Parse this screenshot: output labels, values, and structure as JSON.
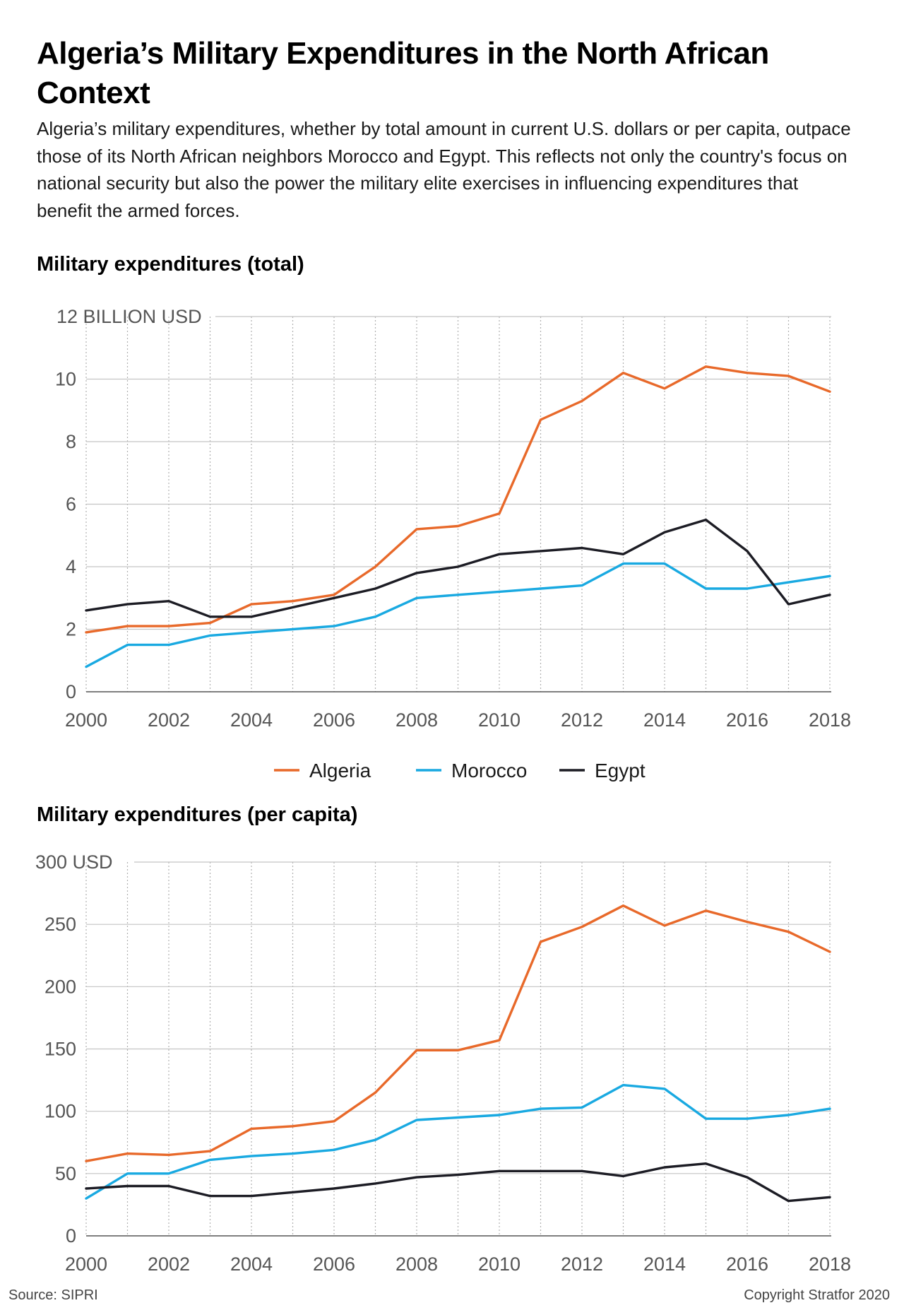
{
  "title": "Algeria’s Military Expenditures in the North African Context",
  "subtitle": "Algeria’s military expenditures, whether by total amount in current U.S. dollars or per capita, outpace those of its North African neighbors Morocco and Egypt. This reflects not only the country's focus on national security but also the power the military elite exercises in influencing expenditures that benefit the armed forces.",
  "source": "Source: SIPRI",
  "copyright": "Copyright Stratfor 2020",
  "colors": {
    "Algeria": "#e8692a",
    "Morocco": "#19a9e1",
    "Egypt": "#1c1c24"
  },
  "chart_data": [
    {
      "type": "line",
      "title": "Military expenditures (total)",
      "unit_label": "12 BILLION USD",
      "ylim": [
        0,
        12
      ],
      "yticks": [
        0,
        2,
        4,
        6,
        8,
        10,
        12
      ],
      "ytick_labels": [
        "0",
        "2",
        "4",
        "6",
        "8",
        "10",
        "12 BILLION USD"
      ],
      "xticks": [
        2000,
        2002,
        2004,
        2006,
        2008,
        2010,
        2012,
        2014,
        2016,
        2018
      ],
      "x": [
        2000,
        2001,
        2002,
        2003,
        2004,
        2005,
        2006,
        2007,
        2008,
        2009,
        2010,
        2011,
        2012,
        2013,
        2014,
        2015,
        2016,
        2017,
        2018
      ],
      "grid": true,
      "legend": "bottom-center",
      "legend_labels": [
        "Algeria",
        "Morocco",
        "Egypt"
      ],
      "series": [
        {
          "name": "Algeria",
          "values": [
            1.9,
            2.1,
            2.1,
            2.2,
            2.8,
            2.9,
            3.1,
            4.0,
            5.2,
            5.3,
            5.7,
            8.7,
            9.3,
            10.2,
            9.7,
            10.4,
            10.2,
            10.1,
            9.6
          ]
        },
        {
          "name": "Morocco",
          "values": [
            0.8,
            1.5,
            1.5,
            1.8,
            1.9,
            2.0,
            2.1,
            2.4,
            3.0,
            3.1,
            3.2,
            3.3,
            3.4,
            4.1,
            4.1,
            3.3,
            3.3,
            3.5,
            3.7
          ]
        },
        {
          "name": "Egypt",
          "values": [
            2.6,
            2.8,
            2.9,
            2.4,
            2.4,
            2.7,
            3.0,
            3.3,
            3.8,
            4.0,
            4.4,
            4.5,
            4.6,
            4.4,
            5.1,
            5.5,
            4.5,
            2.8,
            3.1
          ]
        }
      ]
    },
    {
      "type": "line",
      "title": "Military expenditures (per capita)",
      "unit_label": "300 USD",
      "ylim": [
        0,
        300
      ],
      "yticks": [
        0,
        50,
        100,
        150,
        200,
        250,
        300
      ],
      "ytick_labels": [
        "0",
        "50",
        "100",
        "150",
        "200",
        "250",
        "300 USD"
      ],
      "xticks": [
        2000,
        2002,
        2004,
        2006,
        2008,
        2010,
        2012,
        2014,
        2016,
        2018
      ],
      "x": [
        2000,
        2001,
        2002,
        2003,
        2004,
        2005,
        2006,
        2007,
        2008,
        2009,
        2010,
        2011,
        2012,
        2013,
        2014,
        2015,
        2016,
        2017,
        2018
      ],
      "grid": true,
      "series": [
        {
          "name": "Algeria",
          "values": [
            60,
            66,
            65,
            68,
            86,
            88,
            92,
            115,
            149,
            149,
            157,
            236,
            248,
            265,
            249,
            261,
            252,
            244,
            228
          ]
        },
        {
          "name": "Morocco",
          "values": [
            30,
            50,
            50,
            61,
            64,
            66,
            69,
            77,
            93,
            95,
            97,
            102,
            103,
            121,
            118,
            94,
            94,
            97,
            102
          ]
        },
        {
          "name": "Egypt",
          "values": [
            38,
            40,
            40,
            32,
            32,
            35,
            38,
            42,
            47,
            49,
            52,
            52,
            52,
            48,
            55,
            58,
            47,
            28,
            31
          ]
        }
      ]
    }
  ]
}
